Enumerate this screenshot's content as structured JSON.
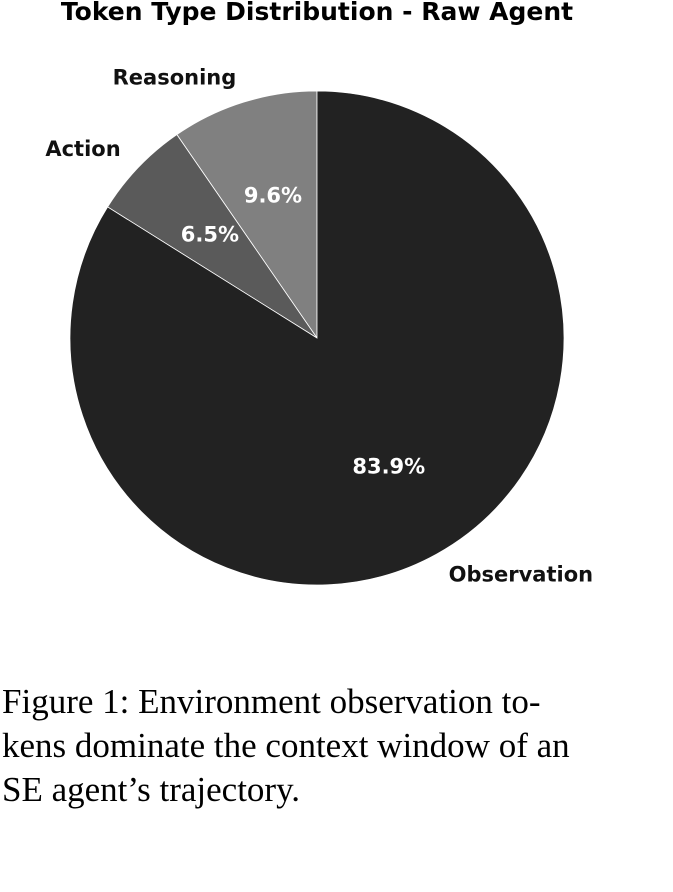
{
  "chart_data": {
    "type": "pie",
    "title": "Token Type Distribution - Raw Agent",
    "categories": [
      "Reasoning",
      "Action",
      "Observation"
    ],
    "values": [
      9.6,
      6.5,
      83.9
    ],
    "value_labels": [
      "9.6%",
      "6.5%",
      "83.9%"
    ],
    "colors": [
      "#808080",
      "#5a5a5a",
      "#222222"
    ],
    "start_angle": 90,
    "counterclockwise": true
  },
  "caption": {
    "lines": [
      "Figure 1:  Environment observation to-",
      "kens dominate the context window of an",
      "SE agent’s trajectory."
    ]
  }
}
